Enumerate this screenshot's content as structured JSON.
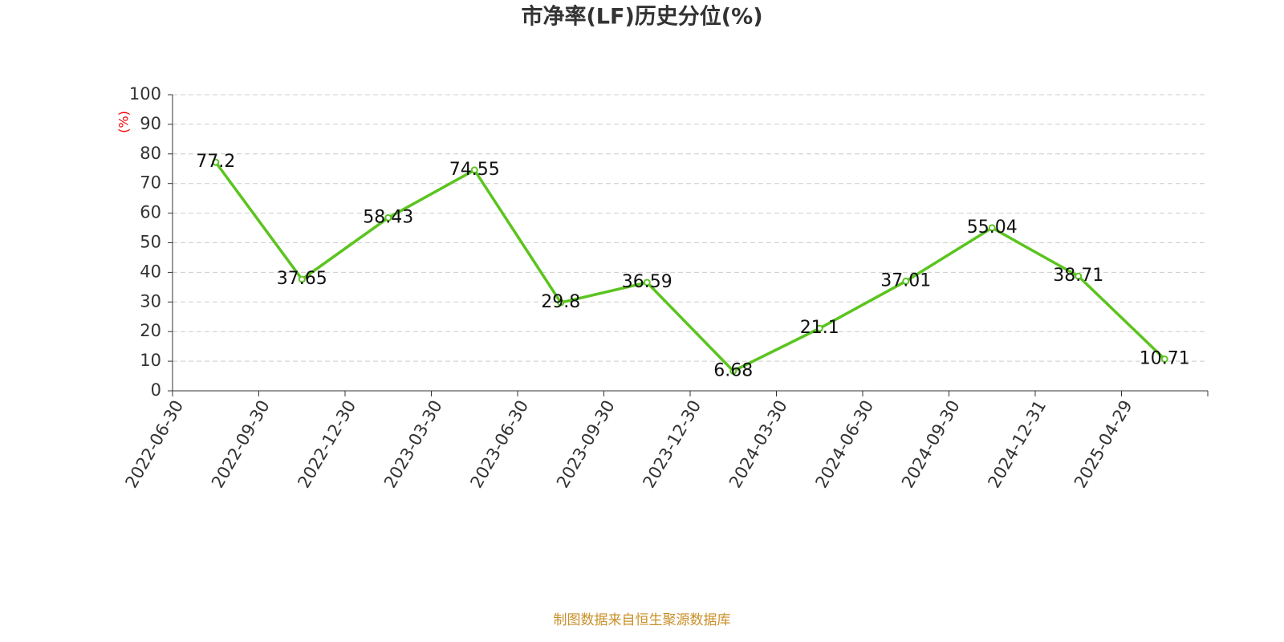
{
  "chart_data": {
    "type": "line",
    "title": "市净率(LF)历史分位(%)",
    "y_label": "(%)",
    "footer": "制图数据来自恒生聚源数据库",
    "categories": [
      "2022-06-30",
      "2022-09-30",
      "2022-12-30",
      "2023-03-30",
      "2023-06-30",
      "2023-09-30",
      "2023-12-30",
      "2024-03-30",
      "2024-06-30",
      "2024-09-30",
      "2024-12-31",
      "2025-04-29"
    ],
    "series": [
      {
        "color": "#5bc41f",
        "values": [
          77.2,
          37.65,
          58.43,
          74.55,
          29.8,
          36.59,
          6.68,
          21.1,
          37.01,
          55.04,
          38.71,
          10.71
        ]
      }
    ],
    "ylim": [
      0,
      100
    ],
    "yticks": [
      0,
      10,
      20,
      30,
      40,
      50,
      60,
      70,
      80,
      90,
      100
    ],
    "grid": true
  }
}
